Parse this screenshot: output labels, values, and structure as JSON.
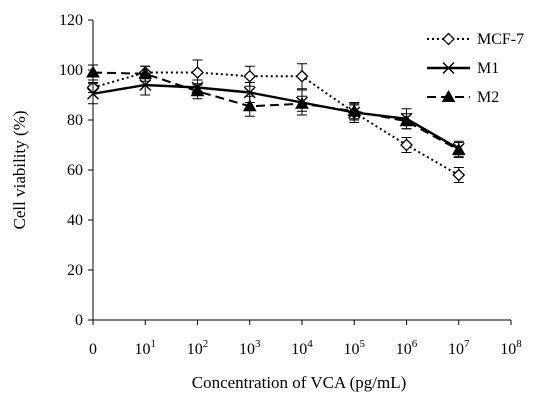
{
  "chart_data": {
    "type": "line",
    "xlabel": "Concentration of VCA (pg/mL)",
    "ylabel": "Cell viability (%)",
    "ylim": [
      0,
      120
    ],
    "y_ticks": [
      "0",
      "20",
      "40",
      "60",
      "80",
      "100",
      "120"
    ],
    "x_ticks": [
      {
        "base": "0",
        "exp": ""
      },
      {
        "base": "10",
        "exp": "1"
      },
      {
        "base": "10",
        "exp": "2"
      },
      {
        "base": "10",
        "exp": "3"
      },
      {
        "base": "10",
        "exp": "4"
      },
      {
        "base": "10",
        "exp": "5"
      },
      {
        "base": "10",
        "exp": "6"
      },
      {
        "base": "10",
        "exp": "7"
      },
      {
        "base": "10",
        "exp": "8"
      }
    ],
    "grid": false,
    "legend_position": "top-right",
    "series": [
      {
        "name": "MCF-7",
        "style": "dotted",
        "marker": "open-diamond",
        "color": "#000000",
        "values": [
          93,
          99,
          99,
          97.5,
          97.5,
          83,
          70,
          58
        ],
        "errors": [
          2,
          2.5,
          5,
          4,
          5,
          3,
          3,
          3
        ]
      },
      {
        "name": "M1",
        "style": "solid",
        "marker": "x",
        "color": "#000000",
        "values": [
          90.5,
          94,
          93,
          91,
          87,
          83,
          80.5,
          68.5
        ],
        "errors": [
          4,
          4,
          3,
          4,
          5,
          4,
          4,
          3
        ]
      },
      {
        "name": "M2",
        "style": "dashed",
        "marker": "filled-triangle",
        "color": "#000000",
        "values": [
          99,
          98.5,
          91.5,
          85.5,
          86.5,
          83.5,
          79.5,
          68
        ],
        "errors": [
          3,
          3,
          3,
          4,
          3,
          3,
          3,
          3
        ]
      }
    ]
  }
}
